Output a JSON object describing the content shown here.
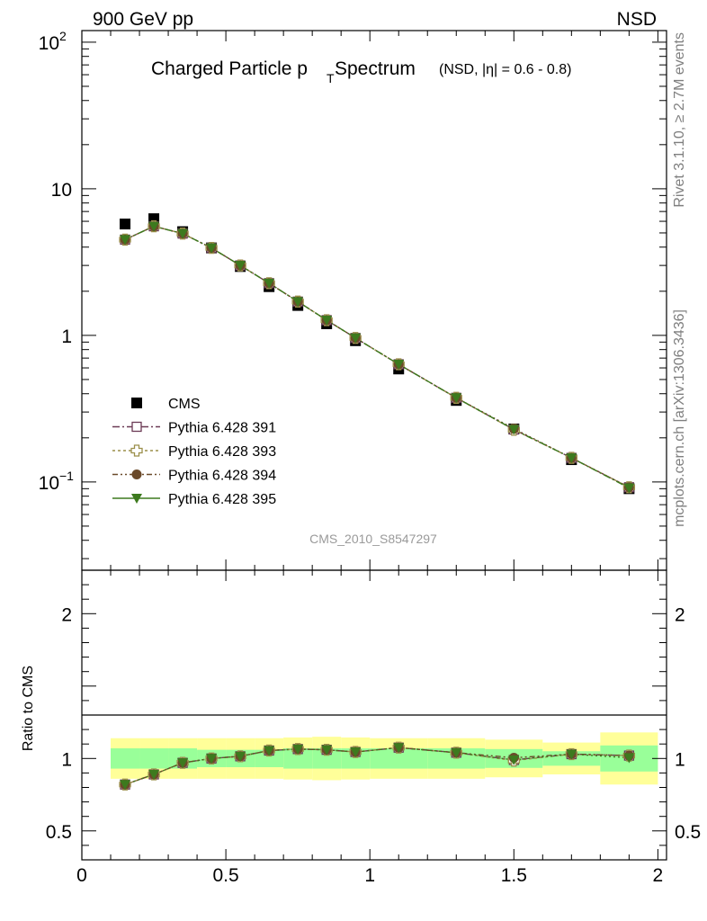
{
  "header": {
    "energy_label": "900 GeV pp",
    "process_label": "NSD"
  },
  "side_text": {
    "rivet": "Rivet 3.1.10, ≥ 2.7M events",
    "source": "mcplots.cern.ch [arXiv:1306.3436]"
  },
  "chart_data": [
    {
      "type": "scatter",
      "panel": "main",
      "title_main": "Charged Particle p",
      "title_sub": "T",
      "title_rest": " Spectrum",
      "title_small": "(NSD, |η| = 0.6 - 0.8)",
      "watermark": "CMS_2010_S8547297",
      "yscale": "log",
      "ylim": [
        0.025,
        120
      ],
      "xlim": [
        0,
        2.03
      ],
      "yticks": [
        {
          "v": 0.1,
          "base": "10",
          "exp": "−1"
        },
        {
          "v": 1,
          "base": "1",
          "exp": ""
        },
        {
          "v": 10,
          "base": "10",
          "exp": ""
        },
        {
          "v": 100,
          "base": "10",
          "exp": "2"
        }
      ],
      "x": [
        0.15,
        0.25,
        0.35,
        0.45,
        0.55,
        0.65,
        0.75,
        0.85,
        0.95,
        1.1,
        1.3,
        1.5,
        1.7,
        1.9
      ],
      "series": [
        {
          "name": "CMS",
          "marker": "square-filled",
          "color": "#000000",
          "values": [
            5.75,
            6.25,
            5.1,
            3.95,
            2.95,
            2.15,
            1.6,
            1.2,
            0.92,
            0.59,
            0.36,
            0.23,
            0.142,
            0.09
          ]
        },
        {
          "name": "Pythia 6.428 391",
          "marker": "square-open",
          "color": "#6b3a55",
          "values": [
            4.5,
            5.55,
            4.95,
            3.95,
            3.0,
            2.27,
            1.7,
            1.27,
            0.96,
            0.635,
            0.375,
            0.228,
            0.146,
            0.092
          ]
        },
        {
          "name": "Pythia 6.428 393",
          "marker": "cross-open",
          "color": "#9b8f4a",
          "values": [
            4.5,
            5.55,
            4.95,
            3.95,
            3.0,
            2.27,
            1.7,
            1.27,
            0.96,
            0.635,
            0.375,
            0.227,
            0.146,
            0.092
          ]
        },
        {
          "name": "Pythia 6.428 394",
          "marker": "circle-filled",
          "color": "#6b4a2a",
          "values": [
            4.5,
            5.55,
            4.95,
            3.95,
            3.0,
            2.27,
            1.7,
            1.27,
            0.96,
            0.635,
            0.375,
            0.231,
            0.146,
            0.092
          ]
        },
        {
          "name": "Pythia 6.428 395",
          "marker": "triangle-down-filled",
          "color": "#3d7a1e",
          "values": [
            4.5,
            5.55,
            4.95,
            3.95,
            3.0,
            2.27,
            1.7,
            1.27,
            0.96,
            0.635,
            0.375,
            0.228,
            0.146,
            0.091
          ]
        }
      ]
    },
    {
      "type": "scatter",
      "panel": "ratio",
      "ylabel": "Ratio to CMS",
      "ylim": [
        0.3,
        2.3
      ],
      "xlim": [
        0,
        2.03
      ],
      "yticks": [
        {
          "v": 0.5,
          "label": "0.5"
        },
        {
          "v": 1,
          "label": "1"
        },
        {
          "v": 2,
          "label": "2"
        }
      ],
      "xticks": [
        {
          "v": 0,
          "label": "0"
        },
        {
          "v": 0.5,
          "label": "0.5"
        },
        {
          "v": 1,
          "label": "1"
        },
        {
          "v": 1.5,
          "label": "1.5"
        },
        {
          "v": 2,
          "label": "2"
        }
      ],
      "bands": [
        {
          "lo": 0.1,
          "hi": 0.2,
          "stat": [
            0.93,
            1.07
          ],
          "syst": [
            0.86,
            1.14
          ]
        },
        {
          "lo": 0.2,
          "hi": 0.3,
          "stat": [
            0.93,
            1.07
          ],
          "syst": [
            0.86,
            1.14
          ]
        },
        {
          "lo": 0.3,
          "hi": 0.4,
          "stat": [
            0.93,
            1.07
          ],
          "syst": [
            0.86,
            1.14
          ]
        },
        {
          "lo": 0.4,
          "hi": 0.5,
          "stat": [
            0.94,
            1.06
          ],
          "syst": [
            0.86,
            1.14
          ]
        },
        {
          "lo": 0.5,
          "hi": 0.6,
          "stat": [
            0.94,
            1.06
          ],
          "syst": [
            0.86,
            1.14
          ]
        },
        {
          "lo": 0.6,
          "hi": 0.7,
          "stat": [
            0.94,
            1.06
          ],
          "syst": [
            0.86,
            1.14
          ]
        },
        {
          "lo": 0.7,
          "hi": 0.8,
          "stat": [
            0.93,
            1.07
          ],
          "syst": [
            0.855,
            1.145
          ]
        },
        {
          "lo": 0.8,
          "hi": 0.9,
          "stat": [
            0.93,
            1.07
          ],
          "syst": [
            0.85,
            1.15
          ]
        },
        {
          "lo": 0.9,
          "hi": 1.0,
          "stat": [
            0.93,
            1.07
          ],
          "syst": [
            0.855,
            1.145
          ]
        },
        {
          "lo": 1.0,
          "hi": 1.2,
          "stat": [
            0.93,
            1.07
          ],
          "syst": [
            0.86,
            1.14
          ]
        },
        {
          "lo": 1.2,
          "hi": 1.4,
          "stat": [
            0.93,
            1.07
          ],
          "syst": [
            0.86,
            1.14
          ]
        },
        {
          "lo": 1.4,
          "hi": 1.6,
          "stat": [
            0.935,
            1.065
          ],
          "syst": [
            0.87,
            1.13
          ]
        },
        {
          "lo": 1.6,
          "hi": 1.8,
          "stat": [
            0.95,
            1.05
          ],
          "syst": [
            0.89,
            1.11
          ]
        },
        {
          "lo": 1.8,
          "hi": 2.0,
          "stat": [
            0.91,
            1.09
          ],
          "syst": [
            0.82,
            1.18
          ]
        }
      ],
      "x": [
        0.15,
        0.25,
        0.35,
        0.45,
        0.55,
        0.65,
        0.75,
        0.85,
        0.95,
        1.1,
        1.3,
        1.5,
        1.7,
        1.9
      ],
      "series": [
        {
          "name": "Pythia 6.428 391",
          "marker": "square-open",
          "color": "#6b3a55",
          "values": [
            0.82,
            0.89,
            0.97,
            1.0,
            1.015,
            1.055,
            1.065,
            1.06,
            1.045,
            1.075,
            1.04,
            0.99,
            1.03,
            1.02
          ]
        },
        {
          "name": "Pythia 6.428 393",
          "marker": "cross-open",
          "color": "#9b8f4a",
          "values": [
            0.82,
            0.89,
            0.97,
            1.0,
            1.015,
            1.055,
            1.065,
            1.06,
            1.045,
            1.075,
            1.04,
            0.985,
            1.03,
            1.02
          ]
        },
        {
          "name": "Pythia 6.428 394",
          "marker": "circle-filled",
          "color": "#6b4a2a",
          "values": [
            0.82,
            0.89,
            0.97,
            1.0,
            1.015,
            1.055,
            1.065,
            1.06,
            1.045,
            1.075,
            1.04,
            1.005,
            1.03,
            1.02
          ]
        },
        {
          "name": "Pythia 6.428 395",
          "marker": "triangle-down-filled",
          "color": "#3d7a1e",
          "values": [
            0.82,
            0.89,
            0.97,
            1.0,
            1.015,
            1.055,
            1.065,
            1.06,
            1.045,
            1.075,
            1.04,
            0.99,
            1.03,
            1.005
          ]
        }
      ]
    }
  ]
}
